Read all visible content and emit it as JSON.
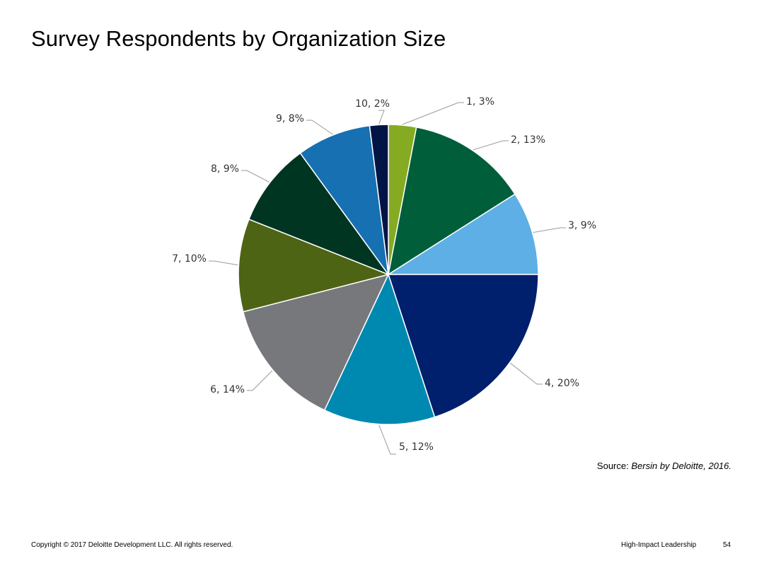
{
  "title": "Survey Respondents by Organization Size",
  "chart_data": {
    "type": "pie",
    "title": "Survey Respondents by Organization Size",
    "start_angle": "12 o'clock",
    "direction": "clockwise",
    "slices": [
      {
        "label": "1, 3%",
        "category": "1",
        "value": 3,
        "color": "#84AB22"
      },
      {
        "label": "2, 13%",
        "category": "2",
        "value": 13,
        "color": "#005E3B"
      },
      {
        "label": "3, 9%",
        "category": "3",
        "value": 9,
        "color": "#5DAFE6"
      },
      {
        "label": "4, 20%",
        "category": "4",
        "value": 20,
        "color": "#001F6D"
      },
      {
        "label": "5, 12%",
        "category": "5",
        "value": 12,
        "color": "#0089B0"
      },
      {
        "label": "6, 14%",
        "category": "6",
        "value": 14,
        "color": "#77787C"
      },
      {
        "label": "7, 10%",
        "category": "7",
        "value": 10,
        "color": "#4E6415"
      },
      {
        "label": "8, 9%",
        "category": "8",
        "value": 9,
        "color": "#003522"
      },
      {
        "label": "9, 8%",
        "category": "9",
        "value": 8,
        "color": "#1670B2"
      },
      {
        "label": "10, 2%",
        "category": "10",
        "value": 2,
        "color": "#001546"
      }
    ]
  },
  "source": {
    "prefix": "Source:",
    "text": "Bersin by Deloitte, 2016."
  },
  "footer": {
    "copyright": "Copyright © 2017 Deloitte Development LLC. All rights reserved.",
    "section": "High-Impact Leadership",
    "page": "54"
  }
}
